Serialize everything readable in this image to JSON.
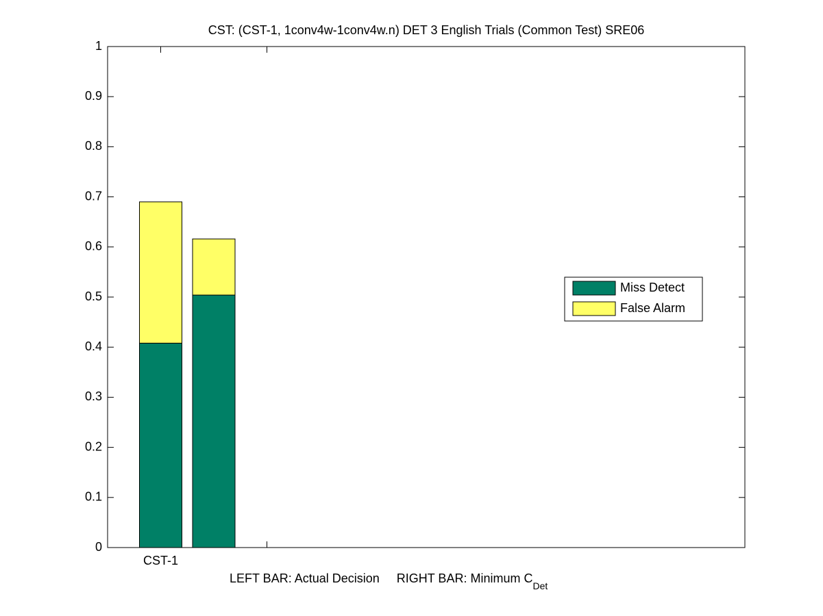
{
  "chart_data": {
    "type": "stacked_bar",
    "title": "CST: (CST-1, 1conv4w-1conv4w.n) DET 3 English Trials (Common Test) SRE06",
    "xlabel": "LEFT BAR: Actual Decision     RIGHT BAR: Minimum C",
    "xlabel_subscript": "Det",
    "categories": [
      "CST-1",
      null
    ],
    "xlim": [
      0.5,
      6.5
    ],
    "series": [
      {
        "name": "Miss Detect",
        "color": "#008066",
        "values": [
          0.408,
          0.504
        ]
      },
      {
        "name": "False Alarm",
        "color": "#ffff66",
        "values": [
          0.282,
          0.112
        ]
      }
    ],
    "ylim": [
      0,
      1
    ],
    "yticks": [
      0,
      0.1,
      0.2,
      0.3,
      0.4,
      0.5,
      0.6,
      0.7,
      0.8,
      0.9,
      1
    ],
    "legend": "right"
  }
}
